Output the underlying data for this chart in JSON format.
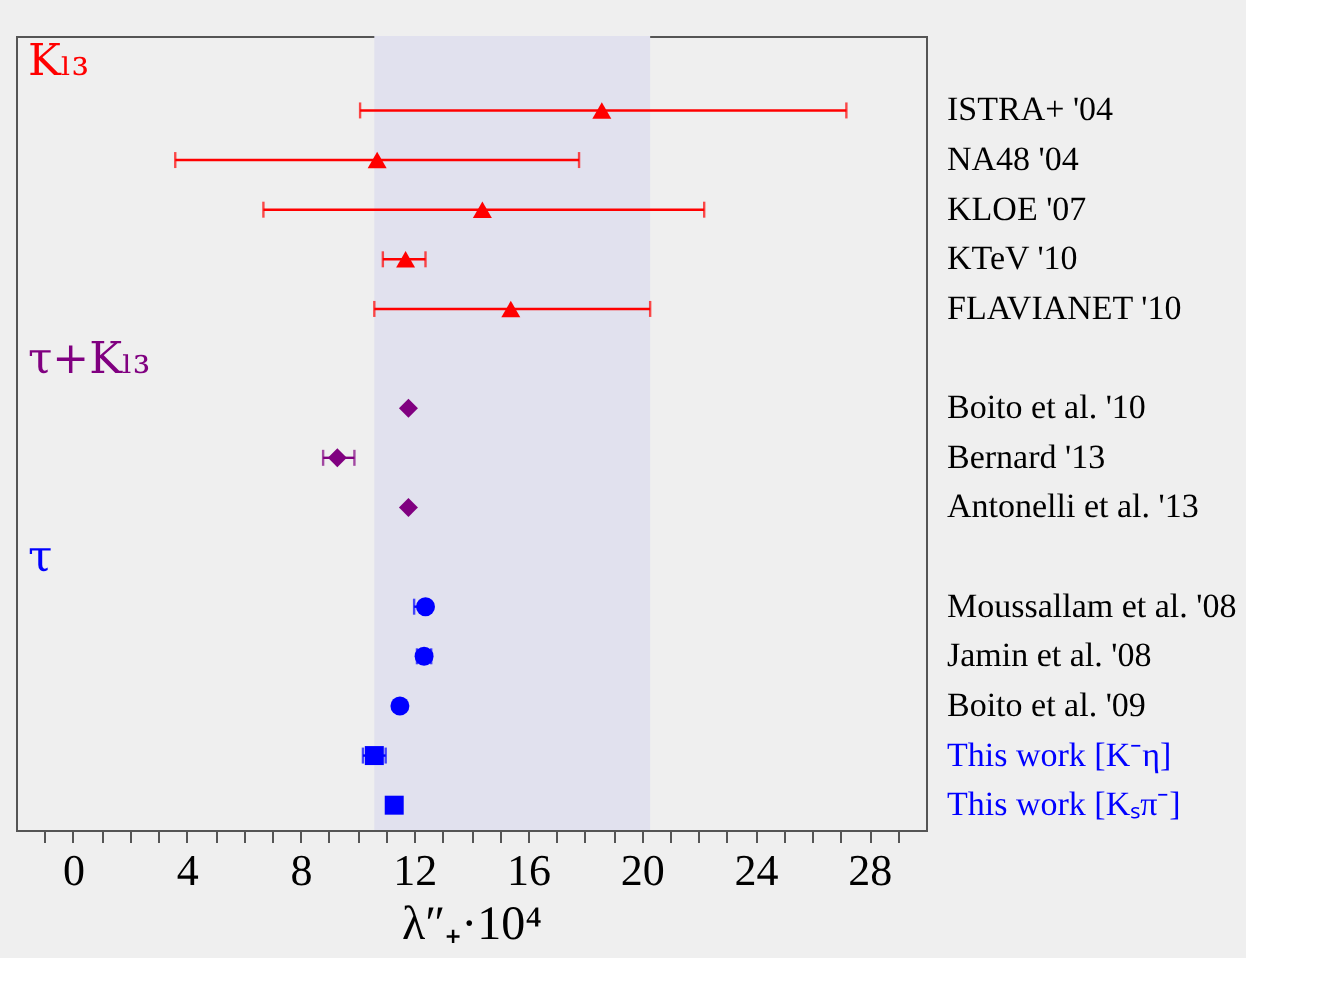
{
  "chart_data": {
    "type": "scatter",
    "orientation": "horizontal",
    "xlabel": "λ″₊·10⁴",
    "categories": [
      null,
      "ISTRA+ '04",
      "NA48 '04",
      "KLOE '07",
      "KTeV '10",
      "FLAVIANET '10",
      null,
      "Boito et al. '10",
      "Bernard '13",
      "Antonelli et al. '13",
      null,
      "Moussallam et al. '08",
      "Jamin et al. '08",
      "Boito et al. '09",
      "This work [K⁻η]",
      "This work [Kₛπ⁻]"
    ],
    "series": [
      {
        "name": "Kₗ₃",
        "color": "#ff0000",
        "marker": "triangle",
        "values": [
          null,
          18.6,
          10.7,
          14.4,
          11.7,
          15.4,
          null,
          null,
          null,
          null,
          null,
          null,
          null,
          null,
          null,
          null
        ],
        "errors": [
          null,
          [
            10.1,
            27.2
          ],
          [
            3.6,
            17.8
          ],
          [
            6.7,
            22.2
          ],
          [
            10.9,
            12.4
          ],
          [
            10.6,
            20.3
          ],
          null,
          null,
          null,
          null,
          null,
          null,
          null,
          null,
          null,
          null
        ]
      },
      {
        "name": "τ+Kₗ₃",
        "color": "#800080",
        "marker": "diamond",
        "values": [
          null,
          null,
          null,
          null,
          null,
          null,
          null,
          11.8,
          9.3,
          11.8,
          null,
          null,
          null,
          null,
          null,
          null
        ],
        "errors": [
          null,
          null,
          null,
          null,
          null,
          null,
          null,
          null,
          [
            8.8,
            9.9
          ],
          null,
          null,
          null,
          null,
          null,
          null,
          null
        ]
      },
      {
        "name": "τ",
        "color": "#0000ff",
        "marker": "circle",
        "values": [
          null,
          null,
          null,
          null,
          null,
          null,
          null,
          null,
          null,
          null,
          null,
          12.4,
          12.35,
          11.5,
          null,
          null
        ],
        "errors": [
          null,
          null,
          null,
          null,
          null,
          null,
          null,
          null,
          null,
          null,
          null,
          [
            12.0,
            12.5
          ],
          [
            12.1,
            12.6
          ],
          null,
          null,
          null
        ]
      },
      {
        "color": "#0000ff",
        "marker": "square",
        "values": [
          null,
          null,
          null,
          null,
          null,
          null,
          null,
          null,
          null,
          null,
          null,
          null,
          null,
          null,
          10.6,
          11.3
        ],
        "errors": [
          null,
          null,
          null,
          null,
          null,
          null,
          null,
          null,
          null,
          null,
          null,
          null,
          null,
          null,
          [
            10.2,
            11.0
          ],
          [
            11.1,
            11.5
          ]
        ]
      }
    ],
    "bands": [
      {
        "axis": "x",
        "from": 10.6,
        "to": 20.3,
        "color": "#e1e1ee"
      }
    ],
    "xlim": [
      -2,
      30
    ],
    "xticks": [
      {
        "value": -1,
        "label": null
      },
      0,
      {
        "value": 1,
        "label": null
      },
      {
        "value": 2,
        "label": null
      },
      {
        "value": 3,
        "label": null
      },
      4,
      {
        "value": 5,
        "label": null
      },
      {
        "value": 6,
        "label": null
      },
      {
        "value": 7,
        "label": null
      },
      8,
      {
        "value": 9,
        "label": null
      },
      {
        "value": 10,
        "label": null
      },
      {
        "value": 11,
        "label": null
      },
      12,
      {
        "value": 13,
        "label": null
      },
      {
        "value": 14,
        "label": null
      },
      {
        "value": 15,
        "label": null
      },
      16,
      {
        "value": 17,
        "label": null
      },
      {
        "value": 18,
        "label": null
      },
      {
        "value": 19,
        "label": null
      },
      20,
      {
        "value": 21,
        "label": null
      },
      {
        "value": 22,
        "label": null
      },
      {
        "value": 23,
        "label": null
      },
      24,
      {
        "value": 25,
        "label": null
      },
      {
        "value": 26,
        "label": null
      },
      {
        "value": 27,
        "label": null
      },
      28,
      {
        "value": 29,
        "label": null
      }
    ],
    "grid": false
  }
}
